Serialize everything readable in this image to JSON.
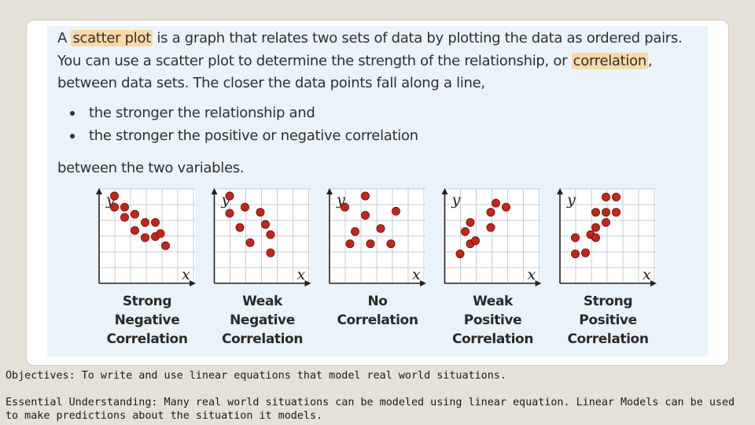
{
  "textbook": {
    "paragraph": {
      "l1_pre": "A ",
      "l1_hl": "scatter plot",
      "l1_post": " is a graph that relates two sets of data by plotting the data as ordered pairs.",
      "l2_pre": "You can use a scatter plot to determine the strength of the relationship, or ",
      "l2_hl": "correlation",
      "l2_post": ",",
      "l3": "between data sets. The closer the data points fall along a line,"
    },
    "bullets": [
      "the stronger the relationship and",
      "the stronger the positive or negative correlation"
    ],
    "closing": "between the two variables.",
    "highlight_color": "#fbd9a6"
  },
  "chart_data": [
    {
      "type": "scatter",
      "xlabel": "x",
      "ylabel": "y",
      "caption": [
        "Strong",
        "Negative",
        "Correlation"
      ],
      "points": [
        [
          1,
          8.6
        ],
        [
          1,
          7.5
        ],
        [
          2,
          7.5
        ],
        [
          2,
          6.5
        ],
        [
          3,
          6.8
        ],
        [
          3,
          5.2
        ],
        [
          4,
          6
        ],
        [
          4,
          4.5
        ],
        [
          5,
          6
        ],
        [
          5,
          4.6
        ],
        [
          5.5,
          4.9
        ],
        [
          6,
          3.7
        ]
      ]
    },
    {
      "type": "scatter",
      "xlabel": "x",
      "ylabel": "y",
      "caption": [
        "Weak",
        "Negative",
        "Correlation"
      ],
      "points": [
        [
          1,
          8.6
        ],
        [
          1,
          6.9
        ],
        [
          2.5,
          7.5
        ],
        [
          2,
          5.5
        ],
        [
          4,
          7
        ],
        [
          3,
          4
        ],
        [
          4.5,
          5.8
        ],
        [
          5,
          4.8
        ],
        [
          5,
          3
        ]
      ]
    },
    {
      "type": "scatter",
      "xlabel": "x",
      "ylabel": "y",
      "caption": [
        "No",
        "Correlation"
      ],
      "points": [
        [
          1,
          7.5
        ],
        [
          3,
          8.6
        ],
        [
          3,
          6.7
        ],
        [
          6,
          7.1
        ],
        [
          2,
          5.1
        ],
        [
          4.5,
          5.4
        ],
        [
          1.5,
          3.9
        ],
        [
          3.5,
          3.9
        ],
        [
          5.5,
          3.9
        ]
      ]
    },
    {
      "type": "scatter",
      "xlabel": "x",
      "ylabel": "y",
      "caption": [
        "Weak",
        "Positive",
        "Correlation"
      ],
      "points": [
        [
          1,
          2.9
        ],
        [
          2,
          6
        ],
        [
          2,
          3.9
        ],
        [
          2.5,
          4.2
        ],
        [
          1.5,
          5.1
        ],
        [
          4,
          5.5
        ],
        [
          4,
          7
        ],
        [
          4.5,
          7.9
        ],
        [
          5.5,
          7.5
        ]
      ]
    },
    {
      "type": "scatter",
      "xlabel": "x",
      "ylabel": "y",
      "caption": [
        "Strong",
        "Positive",
        "Correlation"
      ],
      "points": [
        [
          1,
          2.9
        ],
        [
          1,
          4.5
        ],
        [
          2,
          3
        ],
        [
          2.5,
          4.8
        ],
        [
          3,
          4.5
        ],
        [
          3,
          5.5
        ],
        [
          3,
          7
        ],
        [
          4,
          6
        ],
        [
          4,
          7
        ],
        [
          4,
          8.5
        ],
        [
          5,
          7
        ],
        [
          5,
          8.5
        ]
      ]
    }
  ],
  "footer": {
    "objectives": "Objectives: To write and use linear equations that model real world situations.",
    "essential": "Essential Understanding: Many real world situations can be modeled using  linear equation.  Linear Models can be used to make predictions about the situation it models."
  }
}
